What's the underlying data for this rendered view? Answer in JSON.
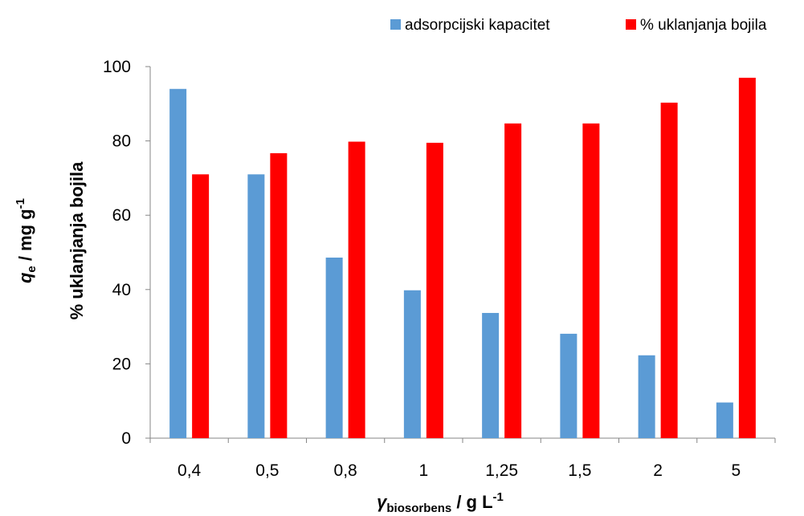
{
  "chart_data": {
    "type": "bar",
    "categories": [
      "0,4",
      "0,5",
      "0,8",
      "1",
      "1,25",
      "1,5",
      "2",
      "5"
    ],
    "series": [
      {
        "name": "adsorpcijski kapacitet",
        "color": "#5b9bd5",
        "values": [
          94,
          71,
          48.6,
          39.8,
          33.7,
          28.1,
          22.3,
          9.6
        ]
      },
      {
        "name": "% uklanjanja bojila",
        "color": "#ff0000",
        "values": [
          71,
          76.7,
          79.8,
          79.5,
          84.7,
          84.7,
          90.3,
          97
        ]
      }
    ],
    "yticks": [
      "0",
      "20",
      "40",
      "60",
      "80",
      "100"
    ],
    "ylim": [
      0,
      100
    ],
    "grid": false,
    "legend_position": "top-right",
    "ylabel_line1": {
      "symbol": "q",
      "subscript": "e",
      "unit": " / mg g",
      "superscript": "-1"
    },
    "ylabel_line2": "% uklanjanja bojila",
    "xlabel": {
      "symbol": "γ",
      "subscript": "biosorbens",
      "unit": " / g L",
      "superscript": "-1"
    }
  }
}
